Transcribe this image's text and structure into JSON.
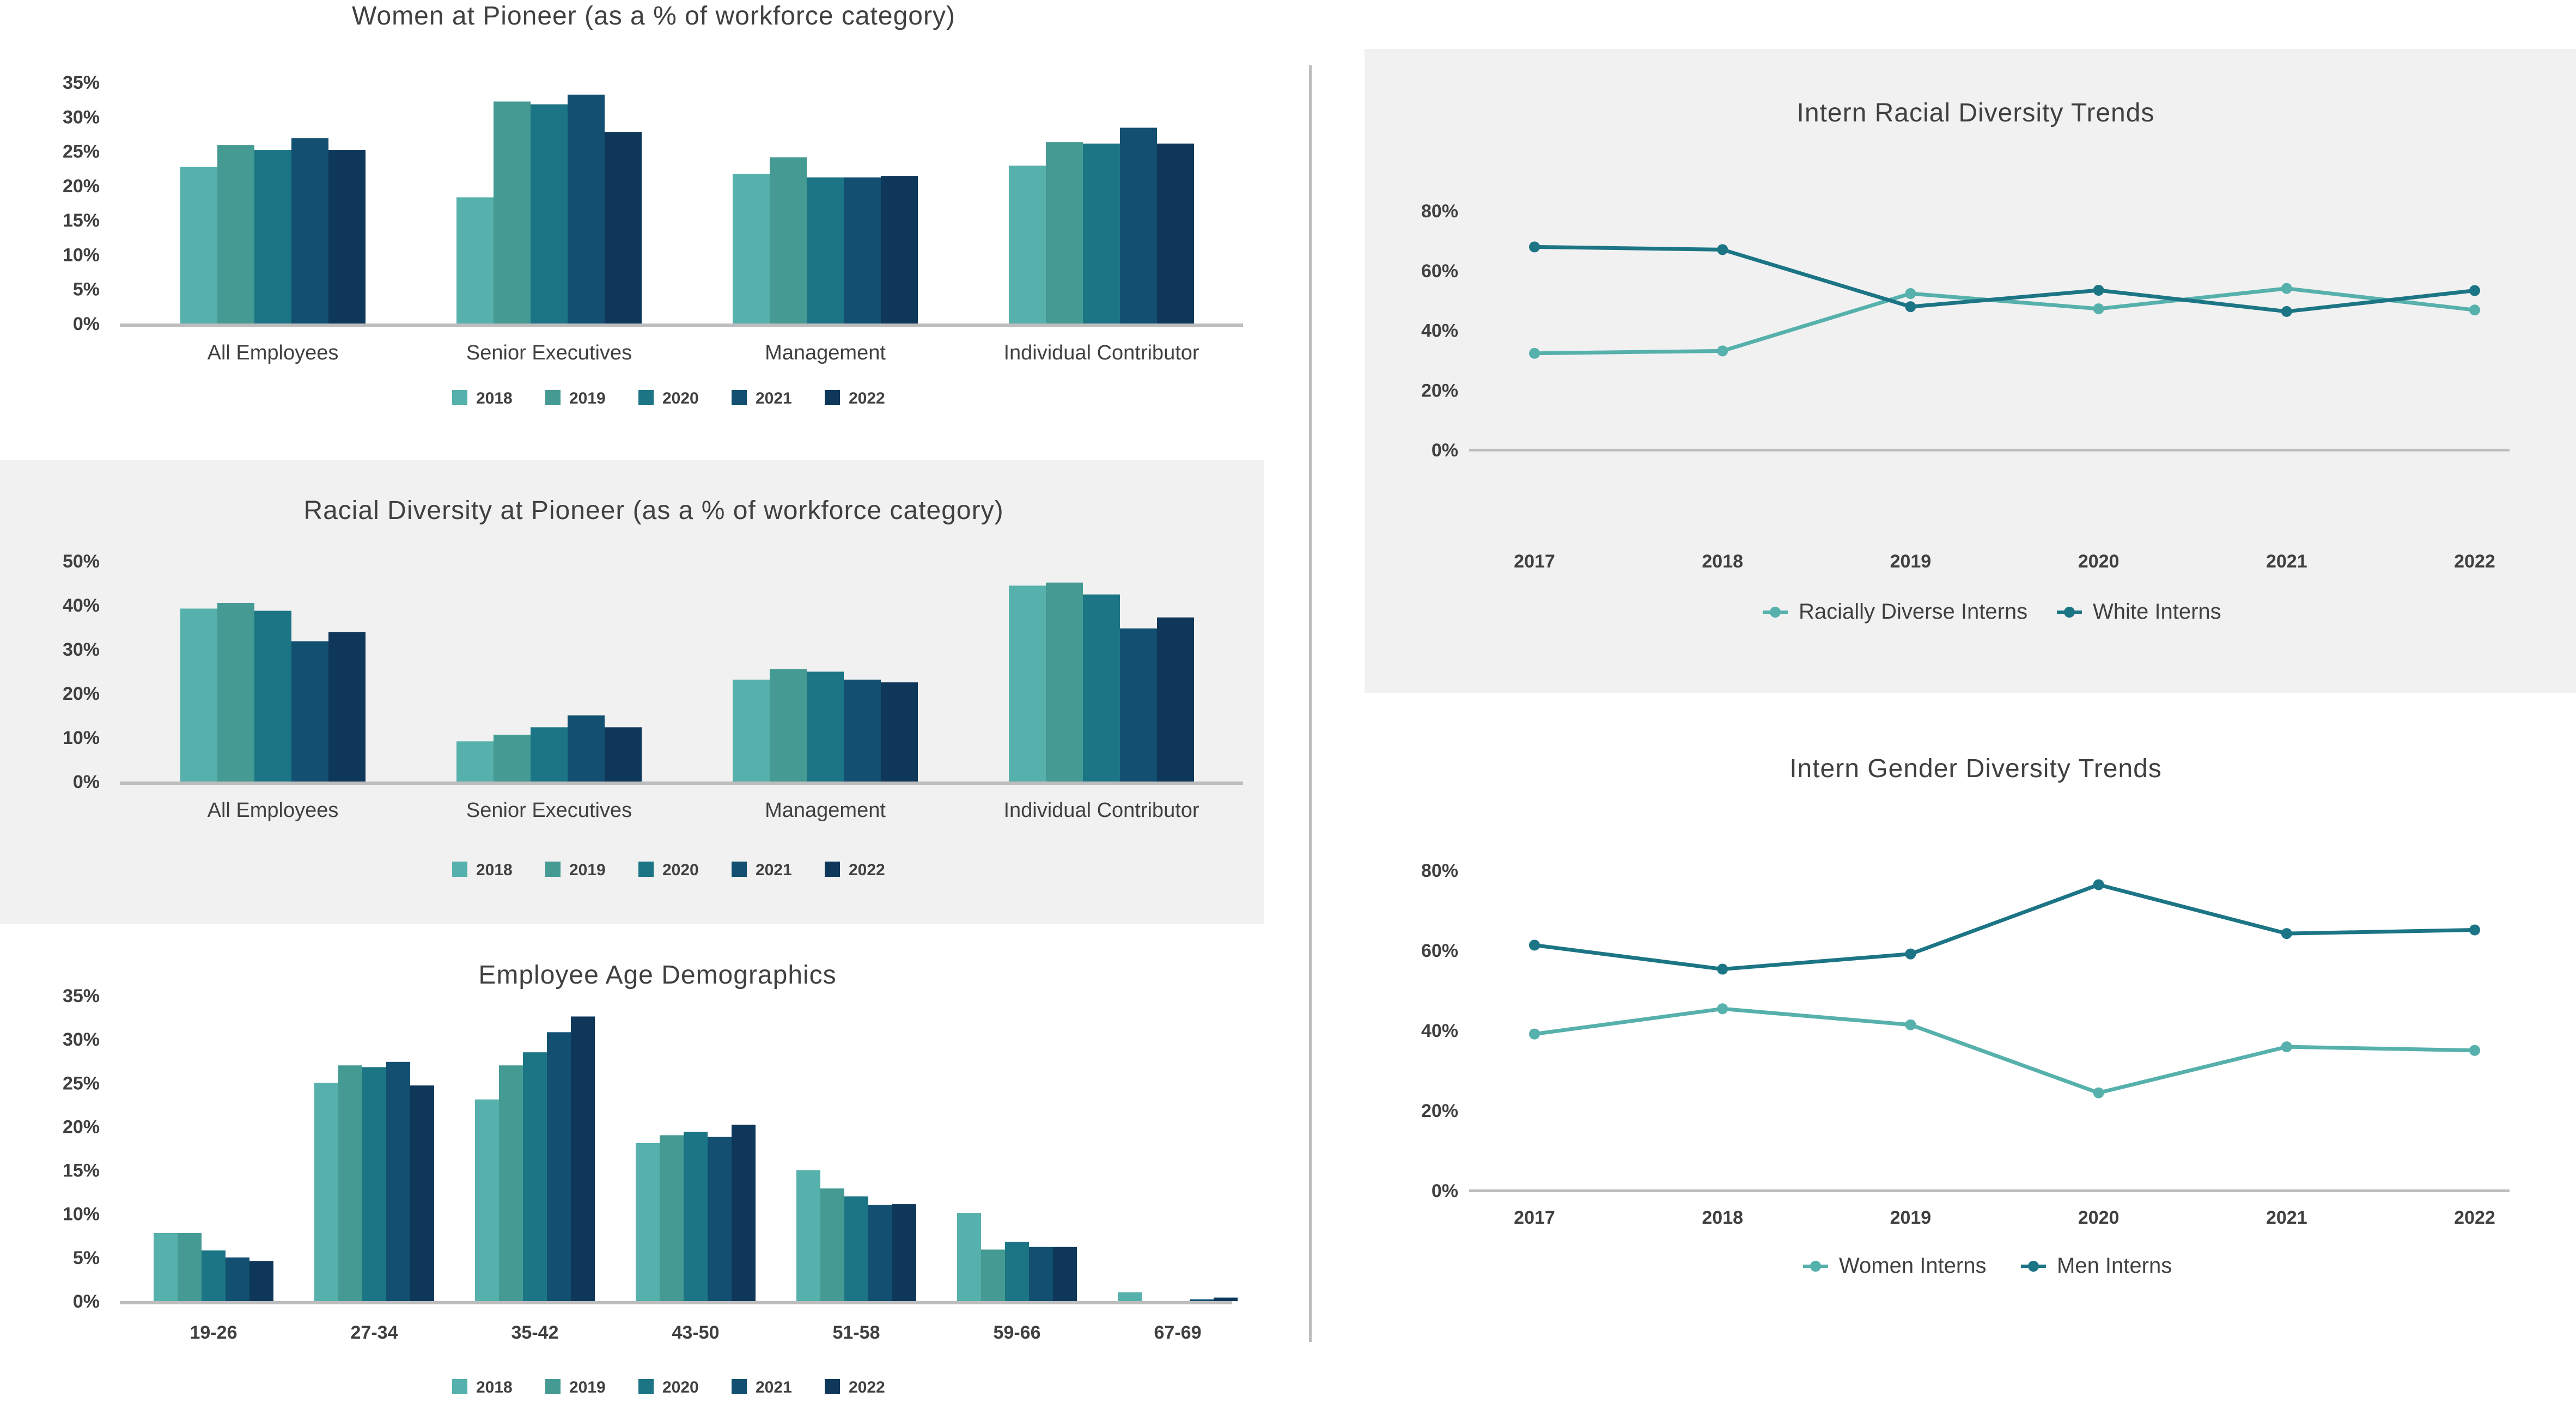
{
  "colors": {
    "years": [
      "#56B0AC",
      "#459A93",
      "#1C7585",
      "#124F70",
      "#0E375A"
    ],
    "light_line": "#56B0AC",
    "dark_line": "#1C7585",
    "axis": "#BDBDBD",
    "panel_bg": "#F1F1F1"
  },
  "chart_data": [
    {
      "id": "women",
      "type": "bar",
      "title": "Women at Pioneer (as a % of workforce category)",
      "categories": [
        "All Employees",
        "Senior Executives",
        "Management",
        "Individual Contributor"
      ],
      "series": [
        {
          "name": "2018",
          "values": [
            22.7,
            18.3,
            21.7,
            22.9
          ]
        },
        {
          "name": "2019",
          "values": [
            25.9,
            32.2,
            24.1,
            26.3
          ]
        },
        {
          "name": "2020",
          "values": [
            25.2,
            31.8,
            21.2,
            26.1
          ]
        },
        {
          "name": "2021",
          "values": [
            26.9,
            33.2,
            21.2,
            28.4
          ]
        },
        {
          "name": "2022",
          "values": [
            25.2,
            27.8,
            21.4,
            26.1
          ]
        }
      ],
      "yticks": [
        "0%",
        "5%",
        "10%",
        "15%",
        "20%",
        "25%",
        "30%",
        "35%"
      ],
      "ylim": [
        0,
        35
      ],
      "xlabel": "",
      "ylabel": "",
      "grid": false,
      "legend": "bottom"
    },
    {
      "id": "racial",
      "type": "bar",
      "title": "Racial Diversity at Pioneer (as a % of workforce category)",
      "categories": [
        "All Employees",
        "Senior Executives",
        "Management",
        "Individual Contributor"
      ],
      "series": [
        {
          "name": "2018",
          "values": [
            39.2,
            9.1,
            23.1,
            44.4
          ]
        },
        {
          "name": "2019",
          "values": [
            40.5,
            10.6,
            25.5,
            45.1
          ]
        },
        {
          "name": "2020",
          "values": [
            38.7,
            12.3,
            24.9,
            42.4
          ]
        },
        {
          "name": "2021",
          "values": [
            31.8,
            15.0,
            23.1,
            34.7
          ]
        },
        {
          "name": "2022",
          "values": [
            33.9,
            12.3,
            22.5,
            37.2
          ]
        }
      ],
      "yticks": [
        "0%",
        "10%",
        "20%",
        "30%",
        "40%",
        "50%"
      ],
      "ylim": [
        0,
        50
      ],
      "xlabel": "",
      "ylabel": "",
      "grid": false,
      "legend": "bottom"
    },
    {
      "id": "age",
      "type": "bar",
      "title": "Employee Age Demographics",
      "categories": [
        "19-26",
        "27-34",
        "35-42",
        "43-50",
        "51-58",
        "59-66",
        "67-69"
      ],
      "series": [
        {
          "name": "2018",
          "values": [
            7.8,
            25.0,
            23.1,
            18.1,
            15.0,
            10.1,
            1.0
          ]
        },
        {
          "name": "2019",
          "values": [
            7.8,
            27.0,
            27.0,
            19.0,
            12.9,
            5.9,
            0.0
          ]
        },
        {
          "name": "2020",
          "values": [
            5.8,
            26.8,
            28.5,
            19.4,
            12.0,
            6.8,
            0.0
          ]
        },
        {
          "name": "2021",
          "values": [
            5.0,
            27.4,
            30.8,
            18.8,
            11.0,
            6.2,
            0.2
          ]
        },
        {
          "name": "2022",
          "values": [
            4.6,
            24.7,
            32.6,
            20.2,
            11.1,
            6.2,
            0.4
          ]
        }
      ],
      "yticks": [
        "0%",
        "5%",
        "10%",
        "15%",
        "20%",
        "25%",
        "30%",
        "35%"
      ],
      "ylim": [
        0,
        35
      ],
      "xlabel": "",
      "ylabel": "",
      "grid": false,
      "legend": "bottom"
    },
    {
      "id": "intern_racial",
      "type": "line",
      "title": "Intern Racial Diversity Trends",
      "x": [
        "2017",
        "2018",
        "2019",
        "2020",
        "2021",
        "2022"
      ],
      "series": [
        {
          "name": "Racially Diverse Interns",
          "values": [
            32.3,
            33.1,
            52.3,
            47.2,
            54.0,
            46.8
          ]
        },
        {
          "name": "White Interns",
          "values": [
            67.9,
            67.0,
            47.9,
            53.4,
            46.3,
            53.3
          ]
        }
      ],
      "yticks": [
        "0%",
        "20%",
        "40%",
        "60%",
        "80%"
      ],
      "ylim": [
        0,
        80
      ],
      "xlabel": "",
      "ylabel": "",
      "grid": false,
      "legend": "bottom"
    },
    {
      "id": "intern_gender",
      "type": "line",
      "title": "Intern Gender Diversity Trends",
      "x": [
        "2017",
        "2018",
        "2019",
        "2020",
        "2021",
        "2022"
      ],
      "series": [
        {
          "name": "Women Interns",
          "values": [
            39.1,
            45.4,
            41.4,
            24.4,
            35.9,
            35.0
          ]
        },
        {
          "name": "Men Interns",
          "values": [
            61.3,
            55.3,
            59.1,
            76.4,
            64.2,
            65.1
          ]
        }
      ],
      "yticks": [
        "0%",
        "20%",
        "40%",
        "60%",
        "80%"
      ],
      "ylim": [
        0,
        80
      ],
      "xlabel": "",
      "ylabel": "",
      "grid": false,
      "legend": "bottom"
    }
  ]
}
